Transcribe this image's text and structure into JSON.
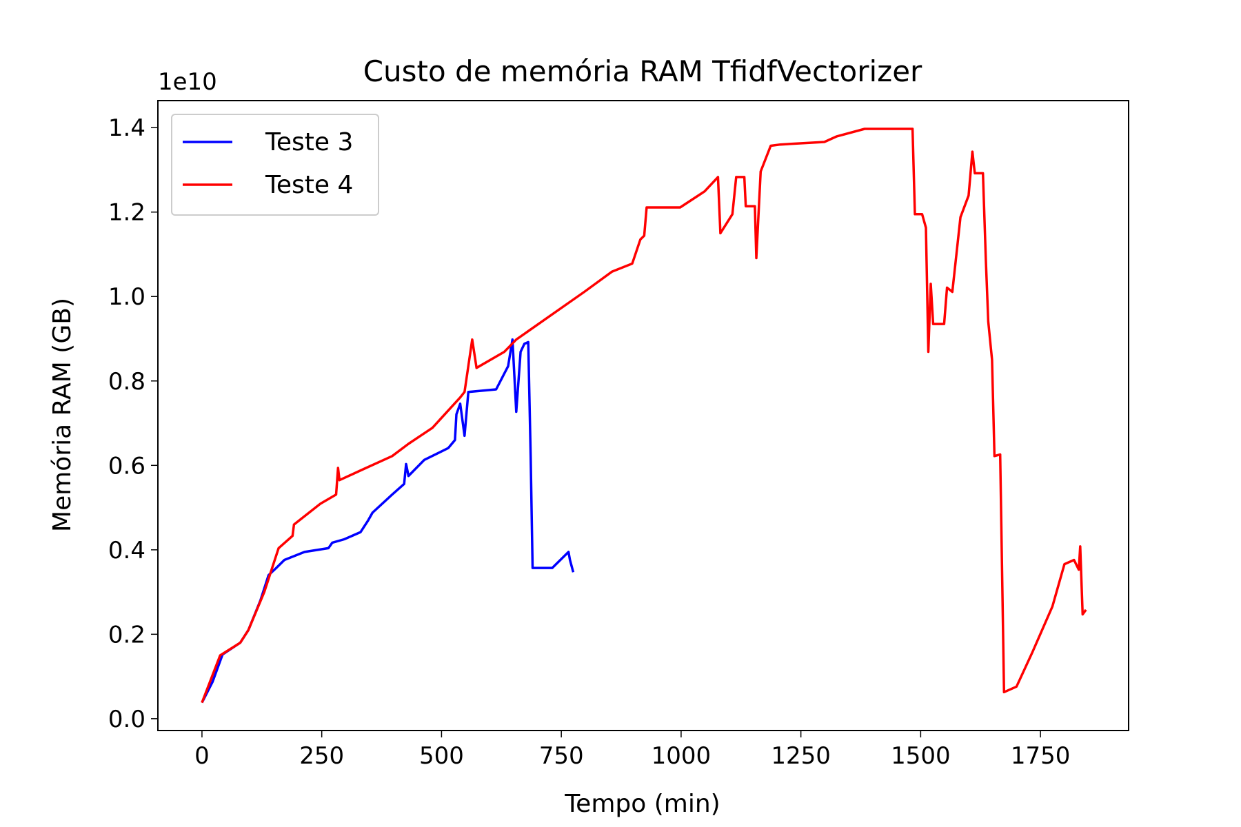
{
  "chart_data": {
    "type": "line",
    "title": "Custo de memória RAM TfidfVectorizer",
    "xlabel": "Tempo (min)",
    "ylabel": "Memória RAM (GB)",
    "y_offset_label": "1e10",
    "xlim": [
      -92,
      1934
    ],
    "ylim": [
      -0.028,
      1.464
    ],
    "xticks": [
      0,
      250,
      500,
      750,
      1000,
      1250,
      1500,
      1750
    ],
    "yticks": [
      {
        "value": 0,
        "label": "0.0"
      },
      0.2,
      0.4,
      0.6,
      0.8,
      {
        "value": 1,
        "label": "1.0"
      },
      1.2,
      1.4
    ],
    "legend": "upper left",
    "series": [
      {
        "name": "Teste 3",
        "color": "#0000ff",
        "x": [
          0,
          22,
          43,
          80,
          97,
          122,
          139,
          155,
          172,
          214,
          264,
          272,
          297,
          331,
          347,
          356,
          397,
          422,
          426,
          431,
          464,
          514,
          528,
          531,
          539,
          548,
          556,
          614,
          639,
          648,
          656,
          665,
          673,
          681,
          686,
          690,
          706,
          731,
          748,
          765,
          768,
          775
        ],
        "values": [
          0.038,
          0.087,
          0.152,
          0.18,
          0.21,
          0.28,
          0.34,
          0.357,
          0.376,
          0.395,
          0.404,
          0.417,
          0.425,
          0.442,
          0.47,
          0.488,
          0.531,
          0.556,
          0.603,
          0.575,
          0.613,
          0.641,
          0.66,
          0.721,
          0.746,
          0.67,
          0.774,
          0.78,
          0.835,
          0.898,
          0.727,
          0.869,
          0.888,
          0.892,
          0.622,
          0.357,
          0.357,
          0.357,
          0.376,
          0.395,
          0.376,
          0.347
        ]
      },
      {
        "name": "Teste 4",
        "color": "#ff0000",
        "x": [
          0,
          38,
          80,
          97,
          130,
          160,
          189,
          192,
          247,
          280,
          284,
          287,
          331,
          397,
          431,
          481,
          539,
          548,
          564,
          573,
          631,
          656,
          715,
          798,
          856,
          898,
          915,
          923,
          928,
          998,
          1049,
          1077,
          1082,
          1107,
          1115,
          1132,
          1135,
          1154,
          1157,
          1166,
          1187,
          1207,
          1299,
          1324,
          1383,
          1483,
          1488,
          1503,
          1511,
          1516,
          1521,
          1526,
          1549,
          1555,
          1566,
          1583,
          1600,
          1608,
          1613,
          1630,
          1636,
          1641,
          1649,
          1654,
          1666,
          1674,
          1700,
          1733,
          1775,
          1800,
          1820,
          1830,
          1833,
          1838,
          1845
        ],
        "values": [
          0.038,
          0.15,
          0.18,
          0.21,
          0.3,
          0.404,
          0.433,
          0.46,
          0.509,
          0.531,
          0.594,
          0.565,
          0.588,
          0.622,
          0.651,
          0.689,
          0.761,
          0.774,
          0.898,
          0.831,
          0.869,
          0.898,
          0.945,
          1.011,
          1.059,
          1.078,
          1.135,
          1.144,
          1.211,
          1.211,
          1.249,
          1.283,
          1.15,
          1.195,
          1.283,
          1.283,
          1.214,
          1.214,
          1.091,
          1.296,
          1.357,
          1.36,
          1.366,
          1.379,
          1.397,
          1.397,
          1.195,
          1.195,
          1.163,
          0.869,
          1.03,
          0.935,
          0.935,
          1.021,
          1.011,
          1.188,
          1.239,
          1.343,
          1.292,
          1.292,
          1.087,
          0.941,
          0.85,
          0.622,
          0.626,
          0.063,
          0.076,
          0.157,
          0.266,
          0.366,
          0.376,
          0.353,
          0.408,
          0.247,
          0.258
        ]
      }
    ]
  }
}
